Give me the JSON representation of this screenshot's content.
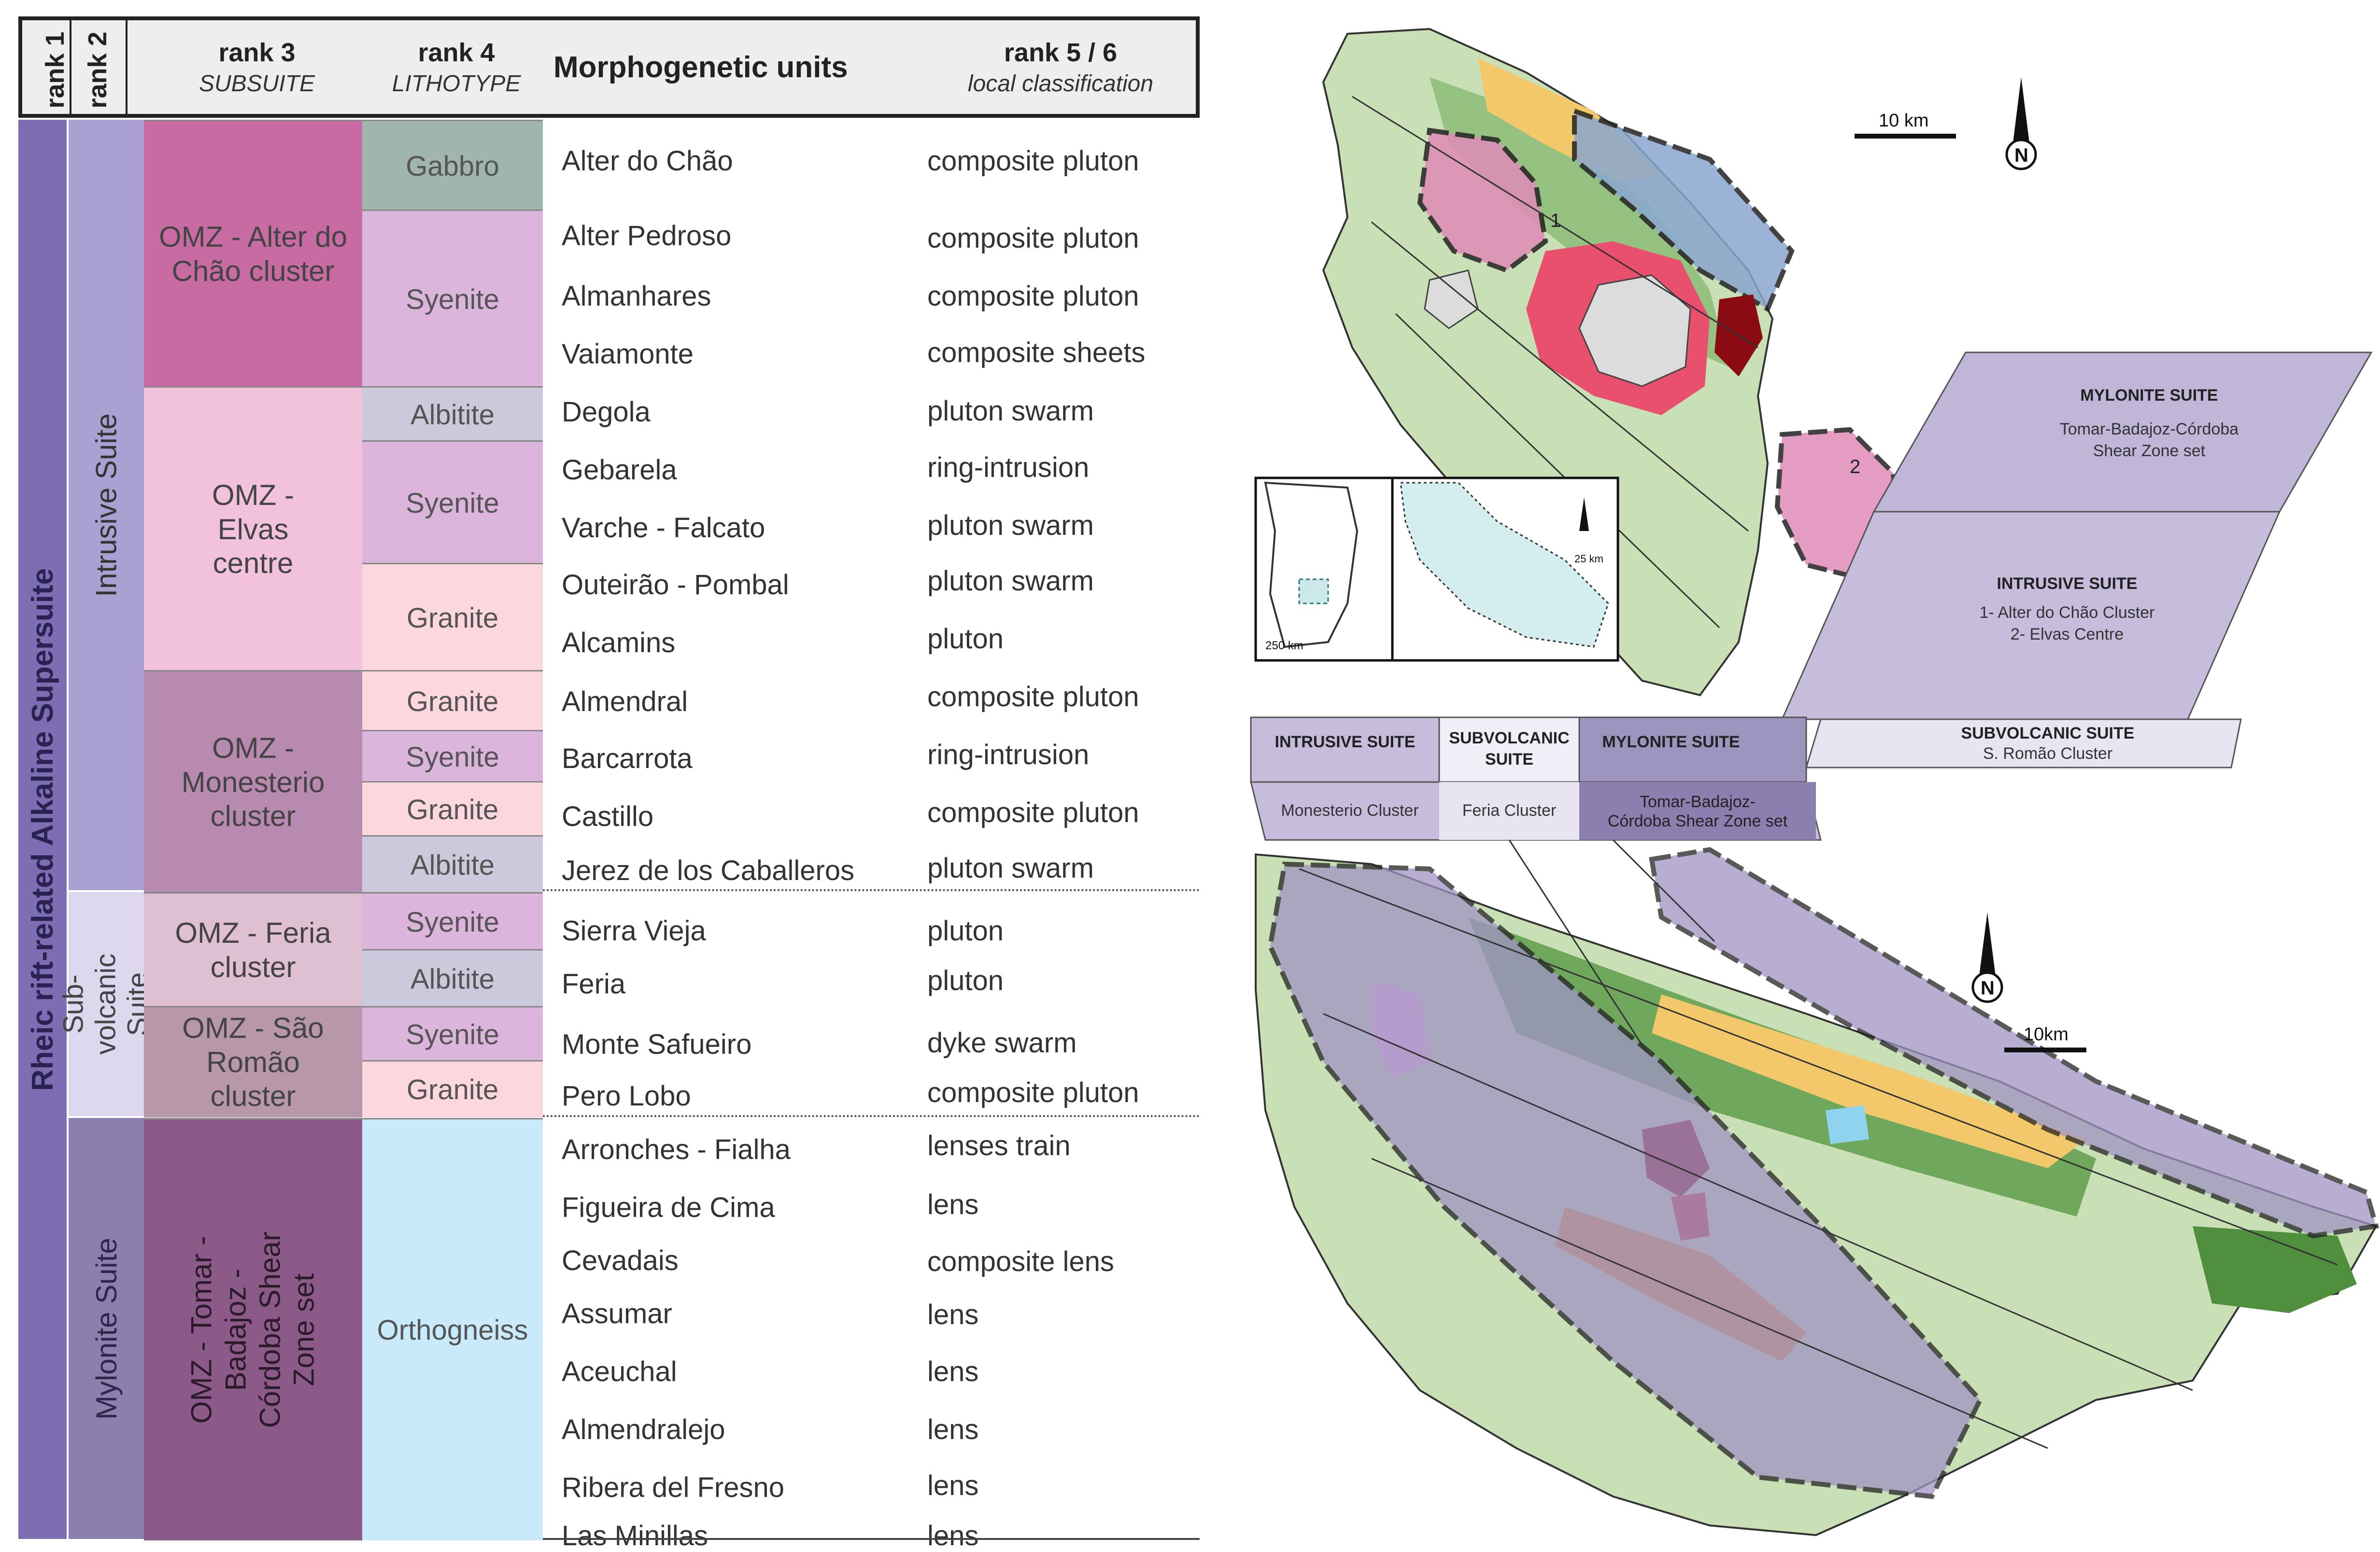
{
  "header": {
    "rank1": "rank 1",
    "rank2": "rank 2",
    "rank3": "rank 3",
    "rank3_sub": "SUBSUITE",
    "rank4": "rank 4",
    "rank4_sub": "LITHOTYPE",
    "units": "Morphogenetic units",
    "rank56": "rank 5 / 6",
    "rank56_sub": "local classification"
  },
  "rank1_label": "Rheic rift-related Alkaline Supersuite",
  "rank2": {
    "intrusive": "Intrusive Suite",
    "subvolcanic": "Sub-volcanic Suite",
    "mylonite": "Mylonite Suite"
  },
  "subsuites": {
    "alter": "OMZ - Alter do Chão cluster",
    "elvas": "OMZ - Elvas centre",
    "monesterio": "OMZ - Monesterio cluster",
    "feria": "OMZ - Feria cluster",
    "saoromao": "OMZ - São Romão cluster",
    "tomar": "OMZ - Tomar - Badajoz - Córdoba Shear Zone set"
  },
  "lithotypes": [
    "Gabbro",
    "Syenite",
    "Albitite",
    "Syenite",
    "Granite",
    "Granite",
    "Syenite",
    "Granite",
    "Albitite",
    "Syenite",
    "Albitite",
    "Syenite",
    "Granite",
    "Orthogneiss"
  ],
  "rows": [
    {
      "unit": "Alter do Chão",
      "cls": "composite pluton"
    },
    {
      "unit": "Alter Pedroso",
      "cls": "composite pluton"
    },
    {
      "unit": "Almanhares",
      "cls": "composite pluton"
    },
    {
      "unit": "Vaiamonte",
      "cls": "composite sheets"
    },
    {
      "unit": "Degola",
      "cls": "pluton swarm"
    },
    {
      "unit": "Gebarela",
      "cls": "ring-intrusion"
    },
    {
      "unit": "Varche - Falcato",
      "cls": "pluton swarm"
    },
    {
      "unit": "Outeirão - Pombal",
      "cls": "pluton swarm"
    },
    {
      "unit": "Alcamins",
      "cls": "pluton"
    },
    {
      "unit": "Almendral",
      "cls": "composite pluton"
    },
    {
      "unit": "Barcarrota",
      "cls": "ring-intrusion"
    },
    {
      "unit": "Castillo",
      "cls": "composite pluton"
    },
    {
      "unit": "Jerez de los Caballeros",
      "cls": "pluton swarm"
    },
    {
      "unit": "Sierra Vieja",
      "cls": "pluton"
    },
    {
      "unit": "Feria",
      "cls": "pluton"
    },
    {
      "unit": "Monte Safueiro",
      "cls": "dyke swarm"
    },
    {
      "unit": "Pero Lobo",
      "cls": "composite pluton"
    },
    {
      "unit": "Arronches - Fialha",
      "cls": "lenses train"
    },
    {
      "unit": "Figueira de Cima",
      "cls": "lens"
    },
    {
      "unit": "Cevadais",
      "cls": "composite lens"
    },
    {
      "unit": "Assumar",
      "cls": "lens"
    },
    {
      "unit": "Aceuchal",
      "cls": "lens"
    },
    {
      "unit": "Almendralejo",
      "cls": "lens"
    },
    {
      "unit": "Ribera del Fresno",
      "cls": "lens"
    },
    {
      "unit": "Las Minillas",
      "cls": "lens"
    }
  ],
  "map_labels": {
    "scale_top": "10 km",
    "scale_bottom": "10km",
    "north": "N",
    "inset_scale_a": "250 km",
    "inset_scale_b": "25 km",
    "legend_mylonite_title": "MYLONITE SUITE",
    "legend_mylonite_text_1": "Tomar-Badajoz-Córdoba",
    "legend_mylonite_text_2": "Shear Zone set",
    "legend_intrusive_title": "INTRUSIVE SUITE",
    "legend_intrusive_text_1": "1- Alter do Chão Cluster",
    "legend_intrusive_text_2": "2- Elvas Centre",
    "legend_subvolcanic_title": "SUBVOLCANIC SUITE",
    "legend_subvolcanic_text": "S. Romão Cluster",
    "bar_intrusive_title": "INTRUSIVE SUITE",
    "bar_subvolcanic_title_1": "SUBVOLCANIC",
    "bar_subvolcanic_title_2": "SUITE",
    "bar_mylonite_title": "MYLONITE SUITE",
    "bar_monesterio": "Monesterio Cluster",
    "bar_feria": "Feria Cluster",
    "bar_tomar_1": "Tomar-Badajoz-",
    "bar_tomar_2": "Córdoba Shear Zone set",
    "pluton_1": "1",
    "pluton_2": "2"
  },
  "colors": {
    "rank1": "#7d6db3",
    "intrusive": "#aba0d2",
    "subvolcanic": "#ddd8ee",
    "mylonite": "#8a7fae",
    "alter": "#c96ba3",
    "elvas": "#f2c1dc",
    "monesterio": "#b88ab0",
    "feria": "#dfc0d2",
    "saoromao": "#b797a8",
    "tomar": "#8c5a88",
    "gabbro": "#9fb5ae",
    "syenite": "#dcb5dc",
    "albitite": "#ccc9dc",
    "granite": "#fcd7e0",
    "orthogneiss": "#c8eafa"
  }
}
